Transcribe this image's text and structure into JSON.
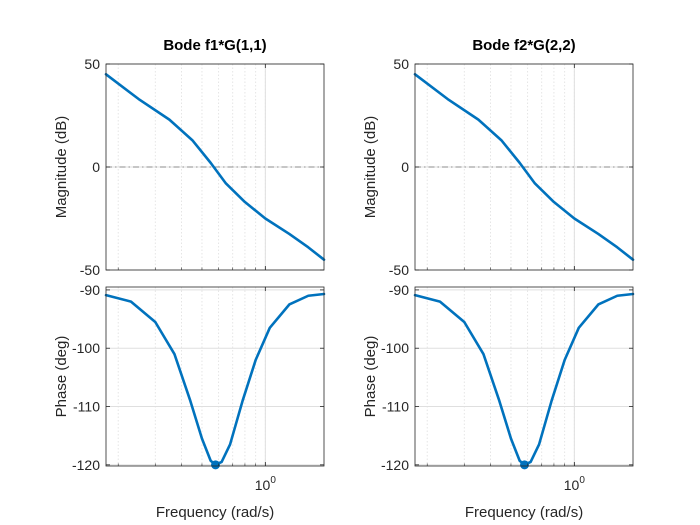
{
  "figure": {
    "background": "#ffffff",
    "axes_color": "#262626",
    "grid_color": "#dfdfdf",
    "line_color": "#0072bd"
  },
  "chart_data": [
    {
      "type": "line",
      "title": "Bode f1*G(1,1)",
      "ylabel": "Magnitude (dB)",
      "xlabel": "",
      "xscale": "log",
      "xlim": [
        0.175,
        1.9
      ],
      "ylim": [
        -50,
        50
      ],
      "yticks": [
        {
          "value": 50,
          "label": "50"
        },
        {
          "value": 0,
          "label": "0"
        },
        {
          "value": -50,
          "label": "-50"
        }
      ],
      "xticks": [
        {
          "value": 1,
          "label": ""
        }
      ],
      "grid": true,
      "reference_line": 0,
      "series": [
        {
          "x": [
            0.175,
            0.25,
            0.35,
            0.45,
            0.55,
            0.65,
            0.8,
            1.0,
            1.3,
            1.6,
            1.9
          ],
          "y": [
            45,
            33,
            23,
            13,
            2,
            -8,
            -17,
            -25,
            -32.5,
            -39,
            -45
          ]
        }
      ]
    },
    {
      "type": "line",
      "title": "Bode f2*G(2,2)",
      "ylabel": "Magnitude (dB)",
      "xlabel": "",
      "xscale": "log",
      "xlim": [
        0.175,
        1.9
      ],
      "ylim": [
        -50,
        50
      ],
      "yticks": [
        {
          "value": 50,
          "label": "50"
        },
        {
          "value": 0,
          "label": "0"
        },
        {
          "value": -50,
          "label": "-50"
        }
      ],
      "xticks": [
        {
          "value": 1,
          "label": ""
        }
      ],
      "grid": true,
      "reference_line": 0,
      "series": [
        {
          "x": [
            0.175,
            0.25,
            0.35,
            0.45,
            0.55,
            0.65,
            0.8,
            1.0,
            1.3,
            1.6,
            1.9
          ],
          "y": [
            45,
            33,
            23,
            13,
            2,
            -8,
            -17,
            -25,
            -32.5,
            -39,
            -45
          ]
        }
      ]
    },
    {
      "type": "line",
      "title": "",
      "ylabel": "Phase (deg)",
      "xlabel": "Frequency  (rad/s)",
      "xscale": "log",
      "xlim": [
        0.175,
        1.9
      ],
      "ylim": [
        -120.2,
        -89.5
      ],
      "yticks": [
        {
          "value": -90,
          "label": "-90"
        },
        {
          "value": -100,
          "label": "-100"
        },
        {
          "value": -110,
          "label": "-110"
        },
        {
          "value": -120,
          "label": "-120"
        }
      ],
      "xticks": [
        {
          "value": 1,
          "label": "10",
          "exponent": "0"
        }
      ],
      "grid": true,
      "marker": {
        "x": 0.58,
        "y": -120
      },
      "series": [
        {
          "x": [
            0.175,
            0.23,
            0.3,
            0.37,
            0.44,
            0.5,
            0.55,
            0.58,
            0.62,
            0.68,
            0.78,
            0.9,
            1.05,
            1.3,
            1.6,
            1.9
          ],
          "y": [
            -90.9,
            -92,
            -95.5,
            -101,
            -109,
            -115.5,
            -119.3,
            -120,
            -119.5,
            -116.5,
            -109,
            -102,
            -96.5,
            -92.5,
            -91,
            -90.7
          ]
        }
      ]
    },
    {
      "type": "line",
      "title": "",
      "ylabel": "Phase (deg)",
      "xlabel": "Frequency  (rad/s)",
      "xscale": "log",
      "xlim": [
        0.175,
        1.9
      ],
      "ylim": [
        -120.2,
        -89.5
      ],
      "yticks": [
        {
          "value": -90,
          "label": "-90"
        },
        {
          "value": -100,
          "label": "-100"
        },
        {
          "value": -110,
          "label": "-110"
        },
        {
          "value": -120,
          "label": "-120"
        }
      ],
      "xticks": [
        {
          "value": 1,
          "label": "10",
          "exponent": "0"
        }
      ],
      "grid": true,
      "marker": {
        "x": 0.58,
        "y": -120
      },
      "series": [
        {
          "x": [
            0.175,
            0.23,
            0.3,
            0.37,
            0.44,
            0.5,
            0.55,
            0.58,
            0.62,
            0.68,
            0.78,
            0.9,
            1.05,
            1.3,
            1.6,
            1.9
          ],
          "y": [
            -90.9,
            -92,
            -95.5,
            -101,
            -109,
            -115.5,
            -119.3,
            -120,
            -119.5,
            -116.5,
            -109,
            -102,
            -96.5,
            -92.5,
            -91,
            -90.7
          ]
        }
      ]
    }
  ]
}
